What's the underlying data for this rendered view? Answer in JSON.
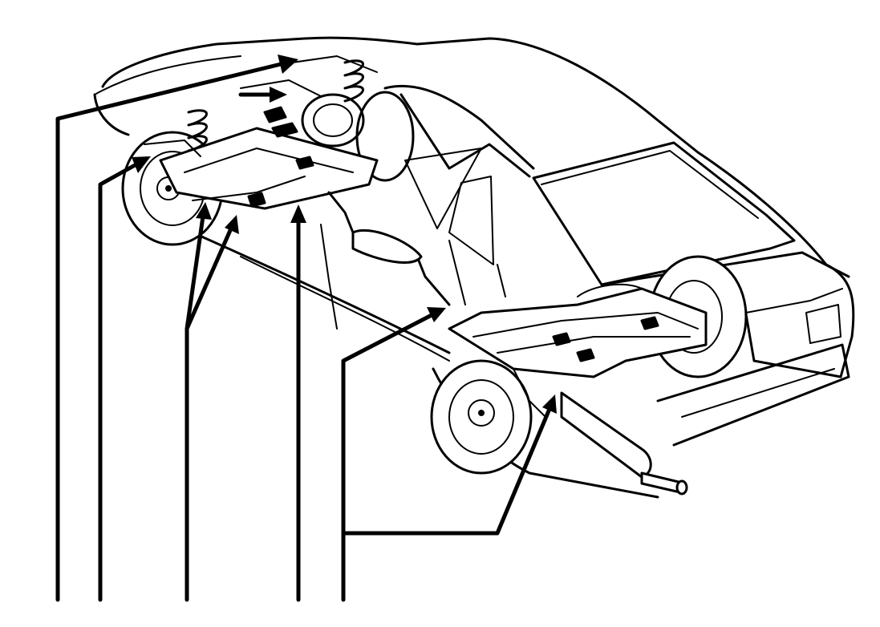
{
  "diagram": {
    "colors": {
      "ink": "#000000",
      "background": "#ffffff"
    },
    "callouts": [
      {
        "id": "callout-1",
        "target": "front-suspension-tower"
      },
      {
        "id": "callout-2",
        "target": "front-brake-disc"
      },
      {
        "id": "callout-3",
        "target": "front-subframe-lower-arms"
      },
      {
        "id": "callout-4",
        "target": "exhaust-front-mount"
      },
      {
        "id": "callout-5",
        "target": "rear-subframe-and-rear-suspension"
      }
    ]
  }
}
